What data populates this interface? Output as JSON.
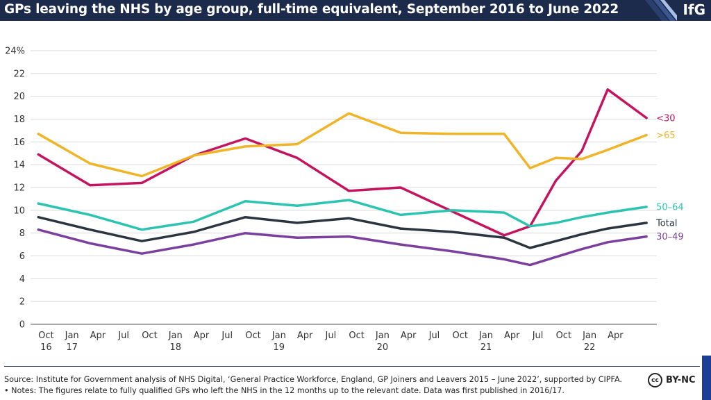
{
  "header": {
    "title": "GPs leaving the NHS by age group, full-time equivalent, September 2016 to June 2022",
    "logo": "IfG"
  },
  "footer": {
    "source": "Source: Institute for Government analysis of NHS Digital, ‘General Practice Workforce, England, GP Joiners and Leavers 2015 – June 2022’, supported by CIPFA.",
    "notes": "• Notes: The figures relate to fully qualified GPs who left the NHS in the 12 months up to the relevant date. Data was first published in 2016/17.",
    "cc_icon": "cc",
    "license": "BY-NC"
  },
  "colors": {
    "header_bg": "#1c2a4b",
    "under30": "#c4145f",
    "over65": "#f0b429",
    "age50_64": "#2cc4b0",
    "total": "#2b3540",
    "age30_49": "#7b3f9e"
  },
  "chart_data": {
    "type": "line",
    "title": "GPs leaving the NHS by age group, full-time equivalent, September 2016 to June 2022",
    "xlabel": "",
    "ylabel": "",
    "ylim": [
      0,
      24
    ],
    "yticks": [
      0,
      2,
      4,
      6,
      8,
      10,
      12,
      14,
      16,
      18,
      20,
      22,
      24
    ],
    "ytick_labels": [
      "0",
      "2",
      "4",
      "6",
      "8",
      "10",
      "12",
      "14",
      "16",
      "18",
      "20",
      "22",
      "24%"
    ],
    "grid": true,
    "x_ticks": [
      {
        "pos": 0,
        "line1": "Oct",
        "line2": "16"
      },
      {
        "pos": 1,
        "line1": "Jan",
        "line2": "17"
      },
      {
        "pos": 2,
        "line1": "Apr",
        "line2": ""
      },
      {
        "pos": 3,
        "line1": "Jul",
        "line2": ""
      },
      {
        "pos": 4,
        "line1": "Oct",
        "line2": ""
      },
      {
        "pos": 5,
        "line1": "Jan",
        "line2": "18"
      },
      {
        "pos": 6,
        "line1": "Apr",
        "line2": ""
      },
      {
        "pos": 7,
        "line1": "Jul",
        "line2": ""
      },
      {
        "pos": 8,
        "line1": "Oct",
        "line2": ""
      },
      {
        "pos": 9,
        "line1": "Jan",
        "line2": "19"
      },
      {
        "pos": 10,
        "line1": "Apr",
        "line2": ""
      },
      {
        "pos": 11,
        "line1": "Jul",
        "line2": ""
      },
      {
        "pos": 12,
        "line1": "Oct",
        "line2": ""
      },
      {
        "pos": 13,
        "line1": "Jan",
        "line2": "20"
      },
      {
        "pos": 14,
        "line1": "Apr",
        "line2": ""
      },
      {
        "pos": 15,
        "line1": "Jul",
        "line2": ""
      },
      {
        "pos": 16,
        "line1": "Oct",
        "line2": ""
      },
      {
        "pos": 17,
        "line1": "Jan",
        "line2": "21"
      },
      {
        "pos": 18,
        "line1": "Apr",
        "line2": ""
      },
      {
        "pos": 19,
        "line1": "Jul",
        "line2": ""
      },
      {
        "pos": 20,
        "line1": "Oct",
        "line2": ""
      },
      {
        "pos": 21,
        "line1": "Jan",
        "line2": "22"
      },
      {
        "pos": 22,
        "line1": "Apr",
        "line2": ""
      }
    ],
    "x_range": [
      -0.6,
      23.6
    ],
    "series": [
      {
        "name": "<30",
        "color_key": "under30",
        "points": [
          [
            -0.3,
            14.9
          ],
          [
            1.7,
            12.2
          ],
          [
            3.7,
            12.4
          ],
          [
            5.7,
            14.8
          ],
          [
            7.7,
            16.3
          ],
          [
            9.7,
            14.6
          ],
          [
            11.7,
            11.7
          ],
          [
            13.7,
            12.0
          ],
          [
            15.7,
            9.9
          ],
          [
            17.7,
            7.8
          ],
          [
            18.7,
            8.6
          ],
          [
            19.7,
            12.6
          ],
          [
            20.7,
            15.2
          ],
          [
            21.7,
            20.6
          ],
          [
            23.2,
            18.1
          ]
        ]
      },
      {
        "name": ">65",
        "color_key": "over65",
        "points": [
          [
            -0.3,
            16.7
          ],
          [
            1.7,
            14.1
          ],
          [
            3.7,
            13.0
          ],
          [
            5.7,
            14.8
          ],
          [
            7.7,
            15.6
          ],
          [
            9.7,
            15.8
          ],
          [
            11.7,
            18.5
          ],
          [
            13.7,
            16.8
          ],
          [
            15.7,
            16.7
          ],
          [
            17.7,
            16.7
          ],
          [
            18.7,
            13.7
          ],
          [
            19.7,
            14.6
          ],
          [
            20.7,
            14.5
          ],
          [
            21.7,
            15.3
          ],
          [
            23.2,
            16.6
          ]
        ]
      },
      {
        "name": "50–64",
        "color_key": "age50_64",
        "points": [
          [
            -0.3,
            10.6
          ],
          [
            1.7,
            9.6
          ],
          [
            3.7,
            8.3
          ],
          [
            5.7,
            9.0
          ],
          [
            7.7,
            10.8
          ],
          [
            9.7,
            10.4
          ],
          [
            11.7,
            10.9
          ],
          [
            13.7,
            9.6
          ],
          [
            15.7,
            10.0
          ],
          [
            17.7,
            9.8
          ],
          [
            18.7,
            8.6
          ],
          [
            19.7,
            8.9
          ],
          [
            20.7,
            9.4
          ],
          [
            21.7,
            9.8
          ],
          [
            23.2,
            10.3
          ]
        ]
      },
      {
        "name": "Total",
        "color_key": "total",
        "points": [
          [
            -0.3,
            9.4
          ],
          [
            1.7,
            8.3
          ],
          [
            3.7,
            7.3
          ],
          [
            5.7,
            8.1
          ],
          [
            7.7,
            9.4
          ],
          [
            9.7,
            8.9
          ],
          [
            11.7,
            9.3
          ],
          [
            13.7,
            8.4
          ],
          [
            15.7,
            8.1
          ],
          [
            17.7,
            7.6
          ],
          [
            18.7,
            6.7
          ],
          [
            19.7,
            7.3
          ],
          [
            20.7,
            7.9
          ],
          [
            21.7,
            8.4
          ],
          [
            23.2,
            8.9
          ]
        ]
      },
      {
        "name": "30–49",
        "color_key": "age30_49",
        "points": [
          [
            -0.3,
            8.3
          ],
          [
            1.7,
            7.1
          ],
          [
            3.7,
            6.2
          ],
          [
            5.7,
            7.0
          ],
          [
            7.7,
            8.0
          ],
          [
            9.7,
            7.6
          ],
          [
            11.7,
            7.7
          ],
          [
            13.7,
            7.0
          ],
          [
            15.7,
            6.4
          ],
          [
            17.7,
            5.7
          ],
          [
            18.7,
            5.2
          ],
          [
            19.7,
            5.9
          ],
          [
            20.7,
            6.6
          ],
          [
            21.7,
            7.2
          ],
          [
            23.2,
            7.7
          ]
        ]
      }
    ]
  }
}
